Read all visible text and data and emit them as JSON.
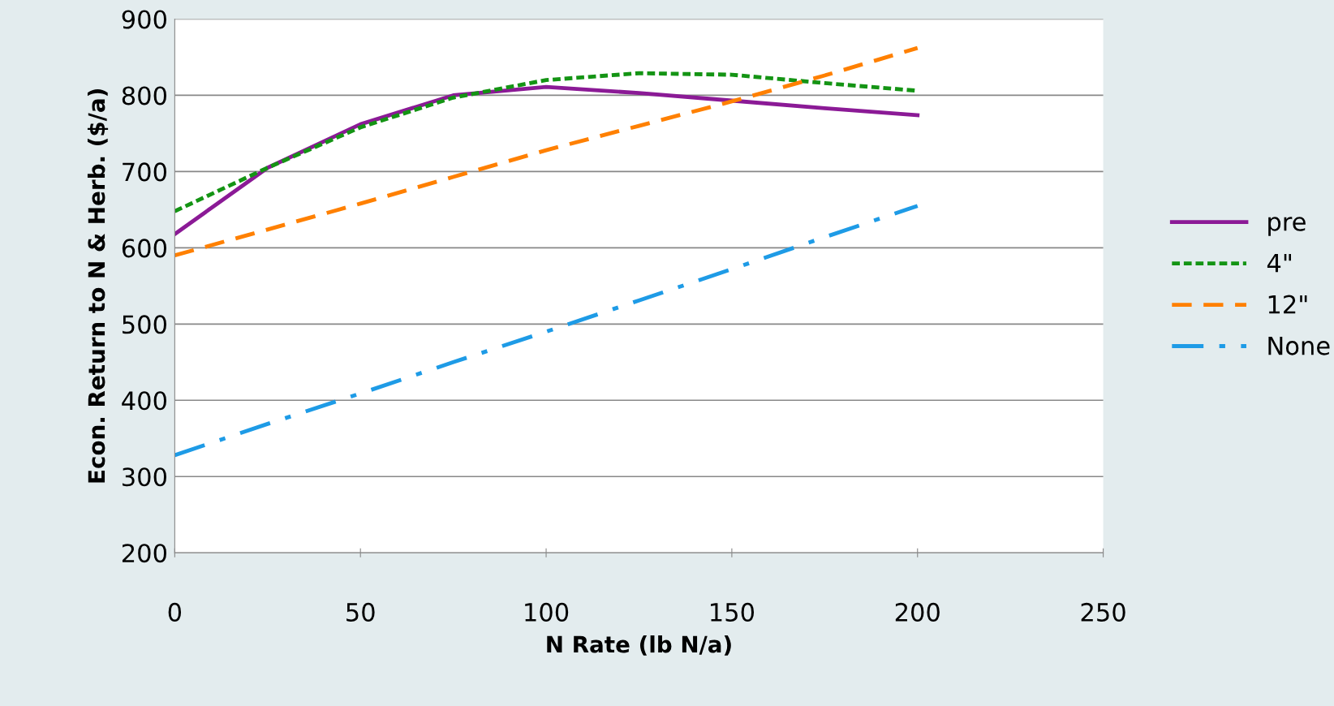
{
  "chart_data": {
    "type": "line",
    "xlabel": "N Rate (lb N/a)",
    "ylabel": "Econ. Return to N & Herb. ($/a)",
    "x": [
      0,
      25,
      50,
      75,
      100,
      125,
      150,
      175,
      200
    ],
    "series": [
      {
        "name": "pre",
        "color": "#8b1a96",
        "line_style": "solid",
        "values": [
          618,
          705,
          762,
          800,
          811,
          803,
          793,
          783,
          774
        ]
      },
      {
        "name": "4\"",
        "color": "#149414",
        "line_style": "dotted",
        "values": [
          648,
          705,
          758,
          797,
          820,
          829,
          827,
          816,
          806
        ]
      },
      {
        "name": "12\"",
        "color": "#ff8000",
        "line_style": "dashed",
        "values": [
          590,
          624,
          658,
          693,
          728,
          760,
          792,
          826,
          862
        ]
      },
      {
        "name": "None",
        "color": "#1e9be6",
        "line_style": "dashdot",
        "values": [
          328,
          369,
          409,
          450,
          490,
          531,
          572,
          614,
          655
        ]
      }
    ],
    "xlim": [
      0,
      250
    ],
    "xticks": [
      0,
      50,
      100,
      150,
      200,
      250
    ],
    "ylim": [
      200,
      900
    ],
    "yticks": [
      200,
      300,
      400,
      500,
      600,
      700,
      800,
      900
    ],
    "grid": "y",
    "legend": "right",
    "marker": "none"
  }
}
